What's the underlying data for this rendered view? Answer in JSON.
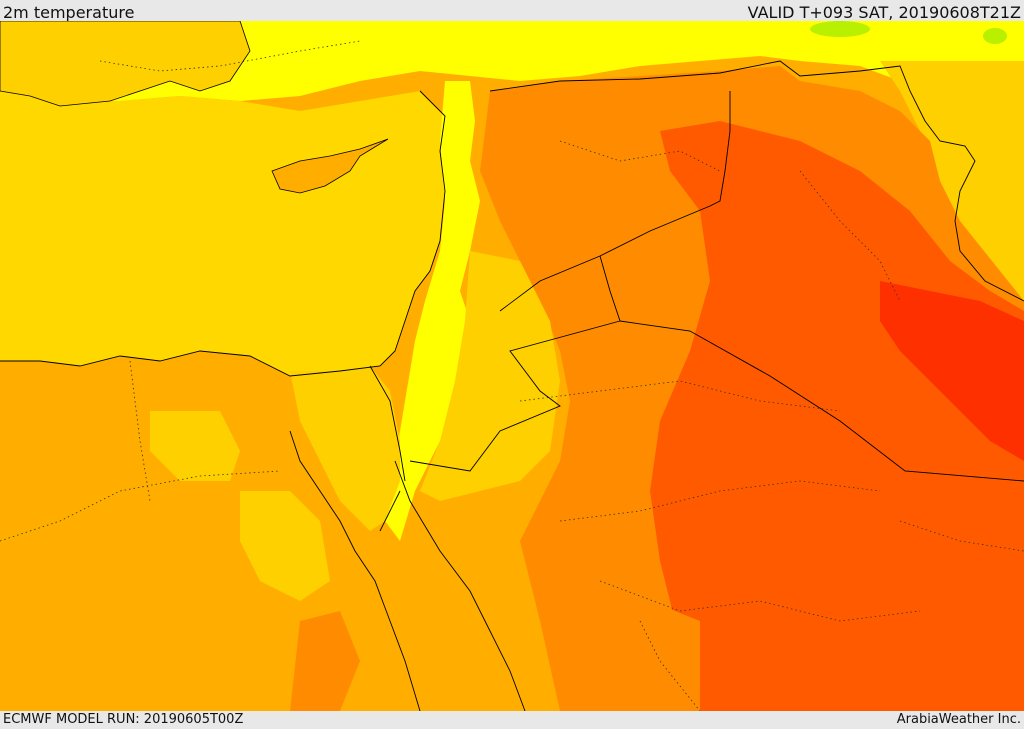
{
  "header": {
    "title": "2m temperature",
    "valid": "VALID T+093 SAT, 20190608T21Z"
  },
  "footer": {
    "model_run": "ECMWF MODEL RUN: 20190605T00Z",
    "credit": "ArabiaWeather Inc."
  },
  "colors": {
    "sea": "#ffd800",
    "cool": "#ffff00",
    "mild": "#ffd000",
    "warm": "#ffae00",
    "hot": "#ff8c00",
    "very_hot": "#ff5a00",
    "extreme": "#ff3000",
    "green": "#b8f000"
  }
}
